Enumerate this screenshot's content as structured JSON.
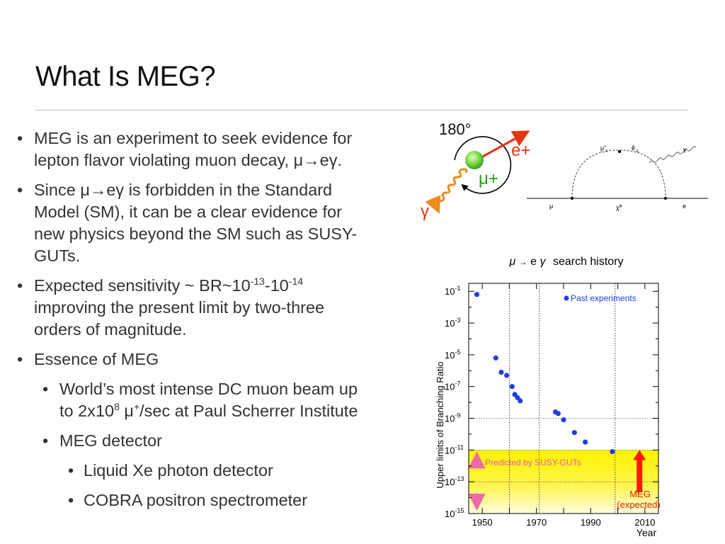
{
  "slide": {
    "title": "What Is MEG?"
  },
  "bullets": {
    "b1_line1": "MEG is an experiment to seek evidence for",
    "b1_line2": "lepton flavor violating muon decay, μ→eγ.",
    "b2_line1": "Since μ→eγ is forbidden in the Standard",
    "b2_line2": "Model (SM), it can be a clear evidence for",
    "b2_line3": "new physics beyond the SM such as SUSY-",
    "b2_line4": "GUTs.",
    "b3_pre": "Expected sensitivity ~ BR~10",
    "b3_exp1": "-13",
    "b3_mid": "-10",
    "b3_exp2": "-14",
    "b3_line2": "improving the present limit by two-three",
    "b3_line3": "orders of magnitude.",
    "b4": "Essence of MEG",
    "b5_line1": "World’s most intense DC muon beam up",
    "b5_pre": "to 2x10",
    "b5_exp1": "8",
    "b5_mid": " μ",
    "b5_exp2": "+",
    "b5_post": "/sec at Paul Scherrer Institute",
    "b6": "MEG detector",
    "b7": "Liquid Xe photon detector",
    "b8": "COBRA positron spectrometer"
  },
  "decay_diagram": {
    "angle_label": "180°",
    "positron_label": "e+",
    "muon_label": "μ+",
    "photon_label": "γ",
    "feynman_labels": {
      "smuon": "μ̃",
      "selectron": "ẽ",
      "neutralino": "χ̃⁰",
      "mu": "μ",
      "e": "e",
      "gamma": "γ",
      "sub_x": "X",
      "sub_k": "K"
    },
    "colors": {
      "arrow": "#e63312",
      "muon_ball": "#7dd84a",
      "photon": "#f08a1c",
      "mu_text": "#2a9a1e"
    }
  },
  "chart_data": {
    "type": "scatter",
    "title": "μ→eγ search history",
    "title_mu": "μ",
    "title_e": "e",
    "title_gamma": "γ",
    "title_rest": "search history",
    "xlabel": "Year",
    "ylabel": "Upper limits of Branching Ratio",
    "xlim": [
      1945,
      2015
    ],
    "ylim_log10": [
      -15,
      -0.5
    ],
    "x_ticks": [
      1950,
      1970,
      1990,
      2010
    ],
    "x_tick_labels": [
      "1950",
      "1970",
      "1990",
      "2010"
    ],
    "y_ticks_log10": [
      -1,
      -3,
      -5,
      -7,
      -9,
      -11,
      -13,
      -15
    ],
    "y_tick_labels": [
      {
        "base": "10",
        "exp": "-1"
      },
      {
        "base": "10",
        "exp": "-3"
      },
      {
        "base": "10",
        "exp": "-5"
      },
      {
        "base": "10",
        "exp": "-7"
      },
      {
        "base": "10",
        "exp": "-9"
      },
      {
        "base": "10",
        "exp": "-11"
      },
      {
        "base": "10",
        "exp": "-13"
      },
      {
        "base": "10",
        "exp": "-15"
      }
    ],
    "series": [
      {
        "name": "Past experiments",
        "x": [
          1948,
          1955,
          1957,
          1959,
          1961,
          1962,
          1963,
          1964,
          1977,
          1978,
          1980,
          1984,
          1988,
          1998
        ],
        "log10_y": [
          -1.2,
          -5.2,
          -6.1,
          -6.3,
          -7.0,
          -7.5,
          -7.7,
          -7.9,
          -8.6,
          -8.7,
          -9.1,
          -9.9,
          -10.5,
          -11.1
        ]
      }
    ],
    "vlines": [
      1960,
      1971,
      1999
    ],
    "hlines_log10": [
      -9,
      -11,
      -13
    ],
    "band": {
      "label": "Predicted by SUSY-GUTs",
      "from_log10": -15,
      "to_log10": -11
    },
    "meg": {
      "label_line1": "MEG",
      "label_line2": "(expected)",
      "target_log10": -11
    },
    "colors": {
      "points": "#1f3fe0",
      "legend_text": "#1f3fe0",
      "band": "#fff200",
      "band_text": "#e85aa0",
      "meg_arrow": "#ff1a00",
      "meg_text": "#e01f00"
    }
  }
}
